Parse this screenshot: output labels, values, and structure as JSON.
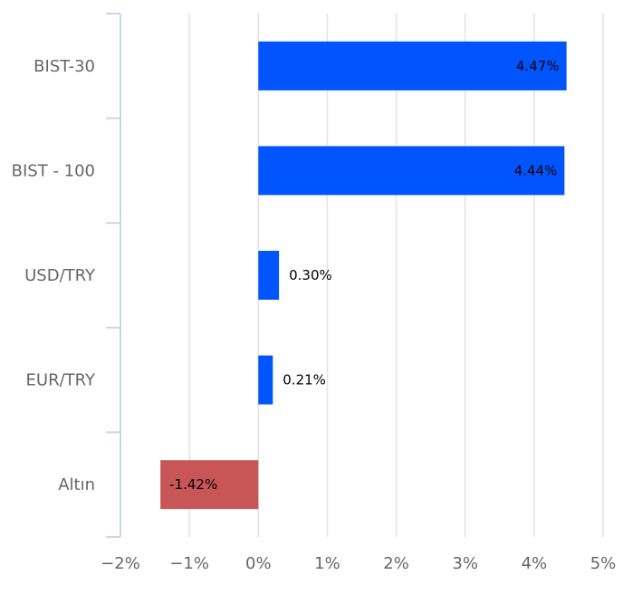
{
  "chart_data": {
    "type": "bar",
    "orientation": "horizontal",
    "categories": [
      "BIST-30",
      "BIST - 100",
      "USD/TRY",
      "EUR/TRY",
      "Altın"
    ],
    "values": [
      4.47,
      4.44,
      0.3,
      0.21,
      -1.42
    ],
    "value_labels": [
      "4.47%",
      "4.44%",
      "0.30%",
      "0.21%",
      "-1.42%"
    ],
    "xlim": [
      -2,
      5
    ],
    "x_ticks": [
      -2,
      -1,
      0,
      1,
      2,
      3,
      4,
      5
    ],
    "x_tick_labels": [
      "−2%",
      "−1%",
      "0%",
      "1%",
      "2%",
      "3%",
      "4%",
      "5%"
    ],
    "grid": true,
    "legend": "none",
    "colors": {
      "positive": "#0055ff",
      "negative": "#c85656",
      "grid": "#e3e3e3",
      "axis": "#ccd6eb"
    }
  }
}
